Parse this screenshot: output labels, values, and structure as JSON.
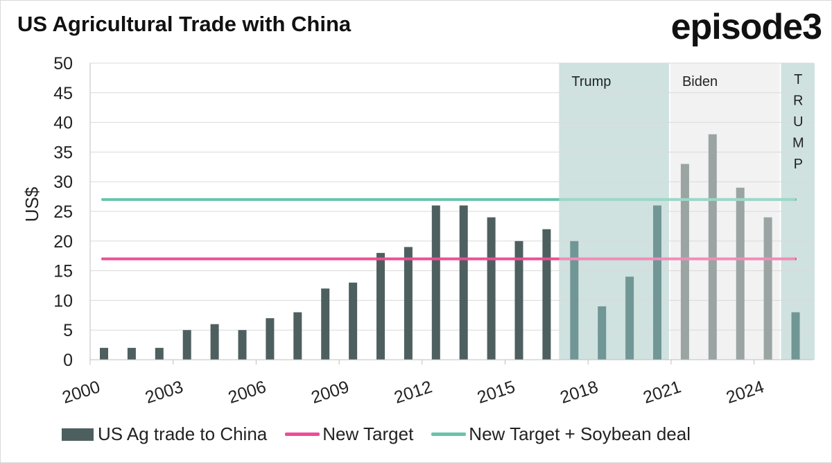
{
  "header": {
    "title": "US Agricultural Trade with China",
    "brand": "episode3"
  },
  "colors": {
    "bar_default": "#4e5f5f",
    "bar_trump": "#719696",
    "bar_biden": "#9aa4a3",
    "target_line": "#ee4d96",
    "soybean_line": "#67c4a9",
    "shade_trump": "#cfe2e0",
    "shade_biden": "#f2f2f2",
    "grid": "#d9d9d9"
  },
  "chart_data": {
    "type": "bar",
    "ylabel": "US$",
    "ylim": [
      0,
      50
    ],
    "yticks": [
      0,
      5,
      10,
      15,
      20,
      25,
      30,
      35,
      40,
      45,
      50
    ],
    "xticks": [
      "2000",
      "2003",
      "2006",
      "2009",
      "2012",
      "2015",
      "2018",
      "2021",
      "2024"
    ],
    "grid": true,
    "legend_position": "bottom",
    "categories": [
      "2000",
      "2001",
      "2002",
      "2003",
      "2004",
      "2005",
      "2006",
      "2007",
      "2008",
      "2009",
      "2010",
      "2011",
      "2012",
      "2013",
      "2014",
      "2015",
      "2016",
      "2017",
      "2018",
      "2019",
      "2020",
      "2021",
      "2022",
      "2023",
      "2024",
      "2025"
    ],
    "series": [
      {
        "name": "US Ag trade to China",
        "type": "bar",
        "values": [
          2,
          2,
          2,
          5,
          6,
          5,
          7,
          8,
          12,
          13,
          18,
          19,
          26,
          26,
          24,
          20,
          22,
          20,
          9,
          14,
          26,
          33,
          38,
          29,
          24,
          8
        ]
      },
      {
        "name": "New Target",
        "type": "line",
        "value": 17
      },
      {
        "name": "New Target + Soybean deal",
        "type": "line",
        "value": 27
      }
    ],
    "periods": [
      {
        "label": "Trump",
        "start": 2017,
        "end": 2020,
        "style": "trump"
      },
      {
        "label": "Biden",
        "start": 2021,
        "end": 2024,
        "style": "biden"
      },
      {
        "label": "TRUMP",
        "start": 2025,
        "end": 2025,
        "style": "trump",
        "vertical": true
      }
    ]
  }
}
